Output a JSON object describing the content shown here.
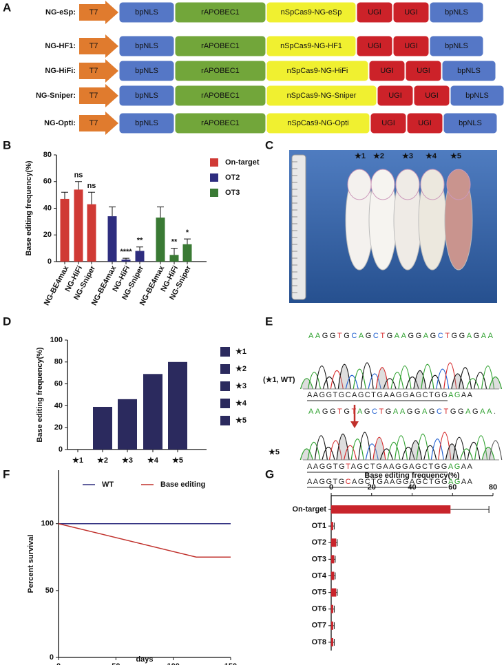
{
  "construct": {
    "panel": "A",
    "rows": [
      {
        "name": "NG-eSp:",
        "promoter": "T7",
        "parts": [
          "bpNLS",
          "rAPOBEC1",
          "nSpCas9-NG-eSp",
          "UGI",
          "UGI",
          "bpNLS"
        ]
      },
      {
        "name": "NG-HF1:",
        "promoter": "T7",
        "parts": [
          "bpNLS",
          "rAPOBEC1",
          "nSpCas9-NG-HF1",
          "UGI",
          "UGI",
          "bpNLS"
        ]
      },
      {
        "name": "NG-HiFi:",
        "promoter": "T7",
        "parts": [
          "bpNLS",
          "rAPOBEC1",
          "nSpCas9-NG-HiFi",
          "UGI",
          "UGI",
          "bpNLS"
        ]
      },
      {
        "name": "NG-Sniper:",
        "promoter": "T7",
        "parts": [
          "bpNLS",
          "rAPOBEC1",
          "nSpCas9-NG-Sniper",
          "UGI",
          "UGI",
          "bpNLS"
        ]
      },
      {
        "name": "NG-Opti:",
        "promoter": "T7",
        "parts": [
          "bpNLS",
          "rAPOBEC1",
          "nSpCas9-NG-Opti",
          "UGI",
          "UGI",
          "bpNLS"
        ]
      }
    ]
  },
  "photo": {
    "panel": "C",
    "labels": [
      "★1",
      "★2",
      "★3",
      "★4",
      "★5"
    ]
  },
  "chromatogram": {
    "panel": "E",
    "wt_label": "(★1, WT)",
    "wt_bases": "AAGGTGCAGCTGAAGGAGCTGGAGAA",
    "wt_sequence": "AAGGTGCAGCTGAAGGAGCTGGAGAA",
    "mutant_label": "★5",
    "mutant_bases": "AAGGTGTAGCTGAAGGAGCTGGAGAA.",
    "mutant_sequences": [
      "AAGGTGTAGCTGAAGGAGCTGGAGAA",
      "AAGGTGCAGCTGAAGGAGCTGGAGAA"
    ]
  },
  "chart_data": [
    {
      "type": "bar",
      "panel": "B",
      "ylabel": "Base editing  frequency(%)",
      "categories": [
        "NG-BE4max",
        "NG-HiFi",
        "NG-Sniper",
        "NG-BE4max",
        "NG-HiFi",
        "NG-Sniper",
        "NG-BE4max",
        "NG-HiFi",
        "NG-Sniper"
      ],
      "ylim": [
        0,
        80
      ],
      "yticks": [
        0,
        20,
        40,
        60,
        80
      ],
      "series": [
        {
          "name": "On-target",
          "color": "#d03a35",
          "values": [
            47,
            54,
            43,
            null,
            null,
            null,
            null,
            null,
            null
          ],
          "errors": [
            5,
            6,
            9,
            null,
            null,
            null,
            null,
            null,
            null
          ],
          "significance": [
            null,
            "ns",
            "ns",
            null,
            null,
            null,
            null,
            null,
            null
          ]
        },
        {
          "name": "OT2",
          "color": "#2e2d7f",
          "values": [
            null,
            null,
            null,
            34,
            1.5,
            8,
            null,
            null,
            null
          ],
          "errors": [
            null,
            null,
            null,
            7,
            1,
            3,
            null,
            null,
            null
          ],
          "significance": [
            null,
            null,
            null,
            null,
            "****",
            "**",
            null,
            null,
            null
          ]
        },
        {
          "name": "OT3",
          "color": "#3a7a34",
          "values": [
            null,
            null,
            null,
            null,
            null,
            null,
            33,
            5,
            13
          ],
          "errors": [
            null,
            null,
            null,
            null,
            null,
            null,
            8,
            5,
            4
          ],
          "significance": [
            null,
            null,
            null,
            null,
            null,
            null,
            null,
            "**",
            "*"
          ]
        }
      ]
    },
    {
      "type": "bar",
      "panel": "D",
      "ylabel": "Base editing frequency(%)",
      "categories": [
        "★1",
        "★2",
        "★3",
        "★4",
        "★5"
      ],
      "values": [
        0,
        39,
        46,
        69,
        80
      ],
      "color": "#2b2a5e",
      "ylim": [
        0,
        100
      ],
      "yticks": [
        0,
        20,
        40,
        60,
        80,
        100
      ]
    },
    {
      "type": "line",
      "panel": "F",
      "xlabel": "days",
      "ylabel": "Percent survival",
      "xlim": [
        0,
        150
      ],
      "xticks": [
        0,
        50,
        100,
        150
      ],
      "ylim": [
        0,
        140
      ],
      "yticks": [
        0,
        50,
        100
      ],
      "series": [
        {
          "name": "WT",
          "color": "#2e2d7f",
          "x": [
            0,
            150
          ],
          "values": [
            100,
            100
          ]
        },
        {
          "name": "Base editing",
          "color": "#c0302b",
          "x": [
            0,
            120,
            150
          ],
          "values": [
            100,
            75,
            75
          ]
        }
      ]
    },
    {
      "type": "bar",
      "orientation": "horizontal",
      "panel": "G",
      "title": "Base editing frequency(%)",
      "categories": [
        "On-target",
        "OT1",
        "OT2",
        "OT3",
        "OT4",
        "OT5",
        "OT6",
        "OT7",
        "OT8"
      ],
      "values": [
        59,
        1,
        2.5,
        1.5,
        1.5,
        2.5,
        1,
        1,
        1
      ],
      "errors": [
        19,
        0.5,
        0.5,
        0.5,
        0.5,
        0.5,
        0.5,
        0.5,
        0.5
      ],
      "color": "#c8242b",
      "xlim": [
        0,
        80
      ],
      "xticks": [
        0,
        20,
        40,
        60,
        80
      ]
    }
  ]
}
